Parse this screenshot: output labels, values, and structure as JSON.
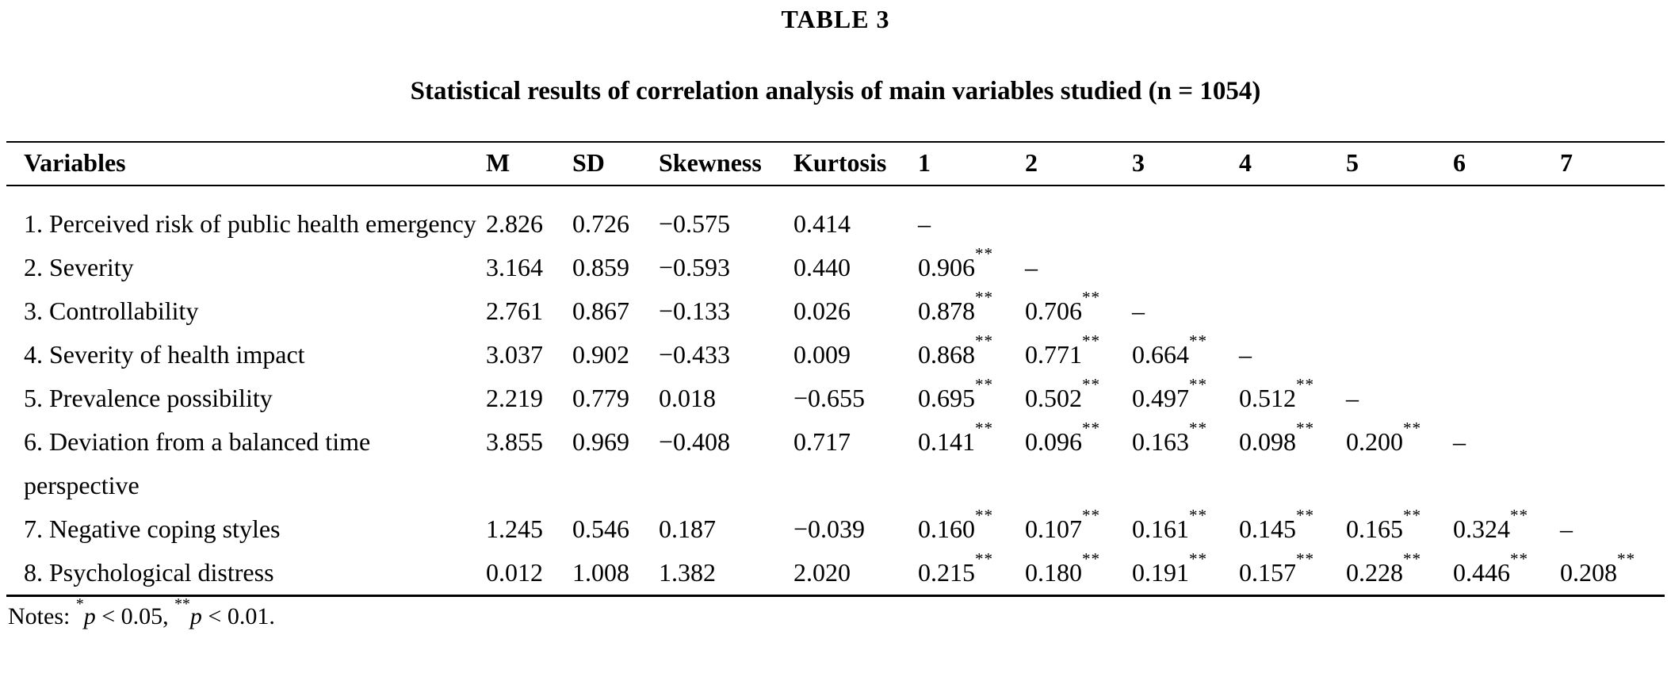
{
  "title": "TABLE 3",
  "subtitle": "Statistical results of correlation analysis of main variables studied (n = 1054)",
  "table": {
    "columns": [
      "Variables",
      "M",
      "SD",
      "Skewness",
      "Kurtosis",
      "1",
      "2",
      "3",
      "4",
      "5",
      "6",
      "7"
    ],
    "empty_cell": "",
    "diagonal_marker": "–",
    "rows": [
      {
        "variable": "1. Perceived risk of public health emergency",
        "m": "2.826",
        "sd": "0.726",
        "skewness": "−0.575",
        "kurtosis": "0.414",
        "correlations": [
          "–",
          "",
          "",
          "",
          "",
          "",
          ""
        ]
      },
      {
        "variable": "2. Severity",
        "m": "3.164",
        "sd": "0.859",
        "skewness": "−0.593",
        "kurtosis": "0.440",
        "correlations": [
          "0.906**",
          "–",
          "",
          "",
          "",
          "",
          ""
        ]
      },
      {
        "variable": "3. Controllability",
        "m": "2.761",
        "sd": "0.867",
        "skewness": "−0.133",
        "kurtosis": "0.026",
        "correlations": [
          "0.878**",
          "0.706**",
          "–",
          "",
          "",
          "",
          ""
        ]
      },
      {
        "variable": "4. Severity of health impact",
        "m": "3.037",
        "sd": "0.902",
        "skewness": "−0.433",
        "kurtosis": "0.009",
        "correlations": [
          "0.868**",
          "0.771**",
          "0.664**",
          "–",
          "",
          "",
          ""
        ]
      },
      {
        "variable": "5. Prevalence possibility",
        "m": "2.219",
        "sd": "0.779",
        "skewness": "0.018",
        "kurtosis": "−0.655",
        "correlations": [
          "0.695**",
          "0.502**",
          "0.497**",
          "0.512**",
          "–",
          "",
          ""
        ]
      },
      {
        "variable": "6. Deviation from a balanced time perspective",
        "m": "3.855",
        "sd": "0.969",
        "skewness": "−0.408",
        "kurtosis": "0.717",
        "correlations": [
          "0.141**",
          "0.096**",
          "0.163**",
          "0.098**",
          "0.200**",
          "–",
          ""
        ]
      },
      {
        "variable": "7. Negative coping styles",
        "m": "1.245",
        "sd": "0.546",
        "skewness": "0.187",
        "kurtosis": "−0.039",
        "correlations": [
          "0.160**",
          "0.107**",
          "0.161**",
          "0.145**",
          "0.165**",
          "0.324**",
          "–"
        ]
      },
      {
        "variable": "8. Psychological distress",
        "m": "0.012",
        "sd": "1.008",
        "skewness": "1.382",
        "kurtosis": "2.020",
        "correlations": [
          "0.215**",
          "0.180**",
          "0.191**",
          "0.157**",
          "0.228**",
          "0.446**",
          "0.208**"
        ]
      }
    ]
  },
  "notes": {
    "parts": [
      {
        "t": "Notes: "
      },
      {
        "sup": "*"
      },
      {
        "i": "p"
      },
      {
        "t": " < 0.05, "
      },
      {
        "sup": "**"
      },
      {
        "i": "p"
      },
      {
        "t": " < 0.01."
      }
    ]
  }
}
